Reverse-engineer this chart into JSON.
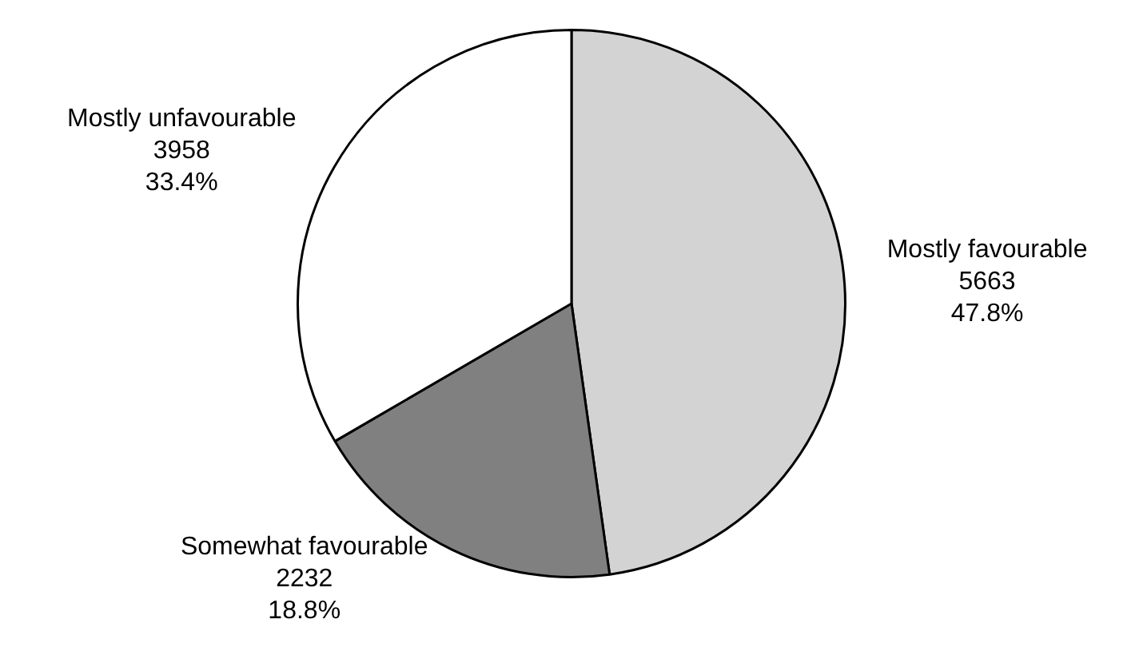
{
  "chart_data": {
    "type": "pie",
    "categories": [
      "Mostly favourable",
      "Somewhat favourable",
      "Mostly unfavourable"
    ],
    "values": [
      5663,
      2232,
      3958
    ],
    "colors": [
      "#d3d3d3",
      "#808080",
      "#ffffff"
    ],
    "value_labels": [
      "5663\n47.8%",
      "2232\n18.8%",
      "3958\n33.4%"
    ]
  }
}
